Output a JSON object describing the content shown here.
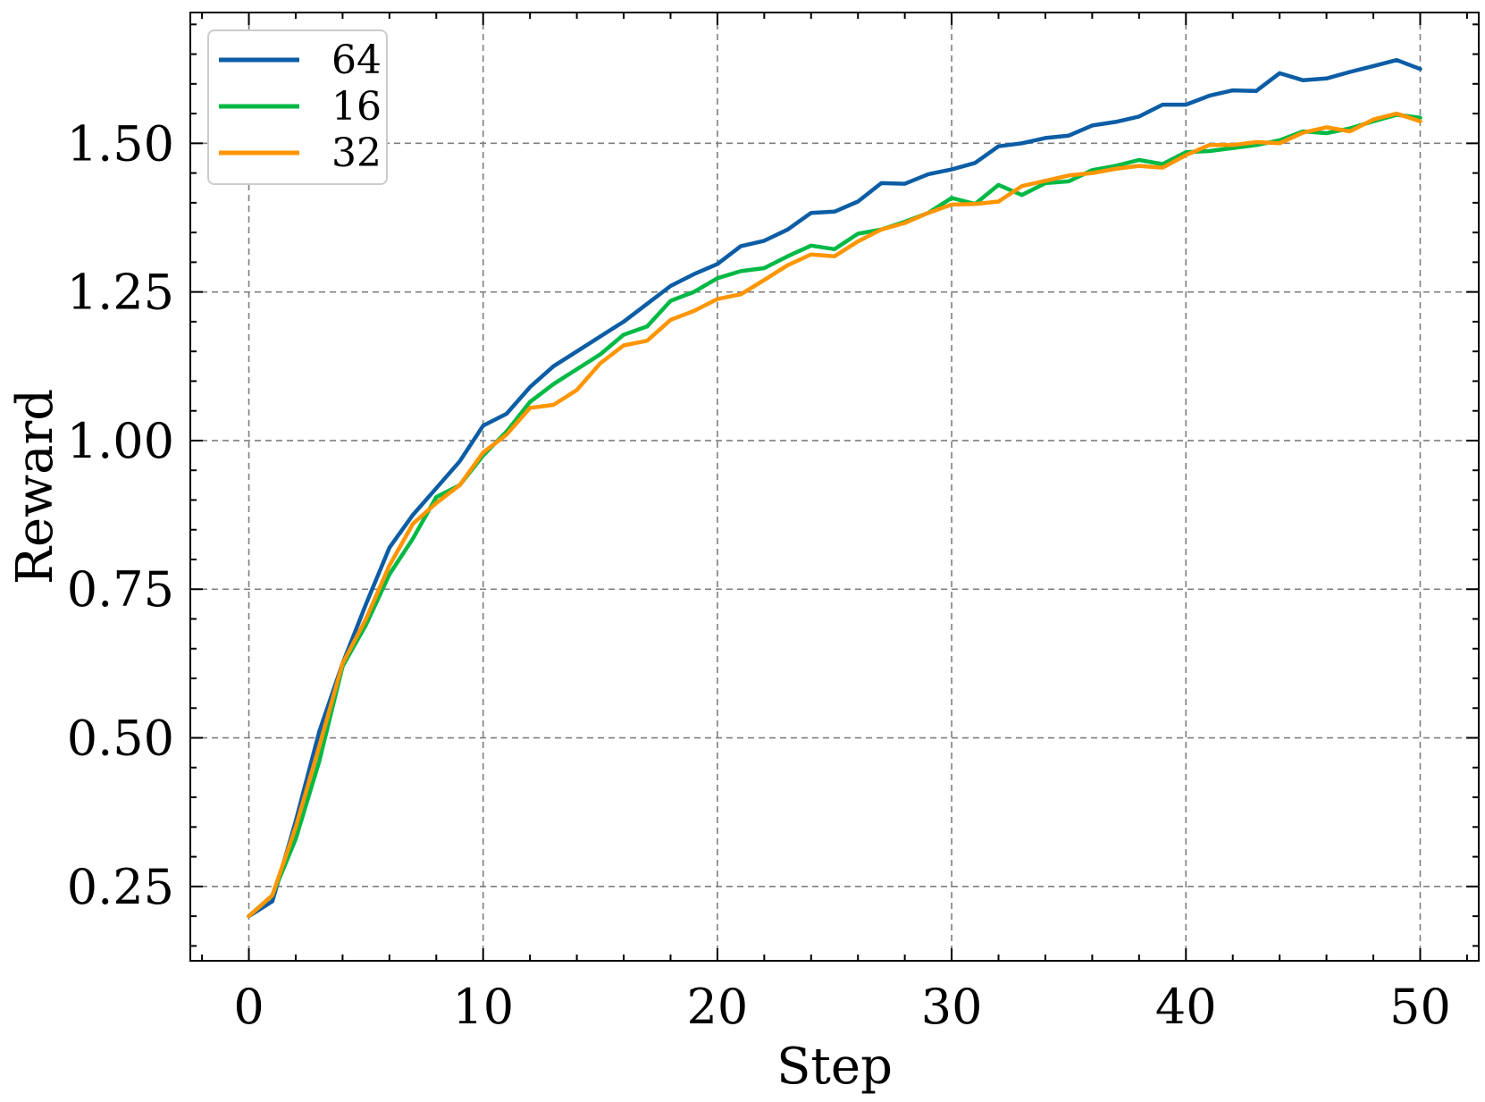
{
  "chart_data": {
    "type": "line",
    "title": "",
    "xlabel": "Step",
    "ylabel": "Reward",
    "xlim": [
      -2.5,
      52.5
    ],
    "ylim": [
      0.125,
      1.72
    ],
    "xticks": [
      0,
      10,
      20,
      30,
      40,
      50
    ],
    "xtick_labels": [
      "0",
      "10",
      "20",
      "30",
      "40",
      "50"
    ],
    "yticks": [
      0.25,
      0.5,
      0.75,
      1.0,
      1.25,
      1.5
    ],
    "ytick_labels": [
      "0.25",
      "0.50",
      "0.75",
      "1.00",
      "1.25",
      "1.50"
    ],
    "grid": true,
    "legend_placement": "top-left",
    "x": [
      0,
      1,
      2,
      3,
      4,
      5,
      6,
      7,
      8,
      9,
      10,
      11,
      12,
      13,
      14,
      15,
      16,
      17,
      18,
      19,
      20,
      21,
      22,
      23,
      24,
      25,
      26,
      27,
      28,
      29,
      30,
      31,
      32,
      33,
      34,
      35,
      36,
      37,
      38,
      39,
      40,
      41,
      42,
      43,
      44,
      45,
      46,
      47,
      48,
      49,
      50
    ],
    "series": [
      {
        "name": "64",
        "color": "#0C5DA5",
        "values": [
          0.2,
          0.225,
          0.36,
          0.51,
          0.625,
          0.725,
          0.82,
          0.875,
          0.92,
          0.965,
          1.025,
          1.045,
          1.09,
          1.125,
          1.15,
          1.175,
          1.2,
          1.23,
          1.26,
          1.28,
          1.297,
          1.327,
          1.336,
          1.355,
          1.383,
          1.385,
          1.402,
          1.433,
          1.432,
          1.448,
          1.456,
          1.467,
          1.495,
          1.5,
          1.509,
          1.513,
          1.53,
          1.536,
          1.545,
          1.565,
          1.565,
          1.58,
          1.589,
          1.588,
          1.618,
          1.606,
          1.609,
          1.62,
          1.63,
          1.64,
          1.625
        ]
      },
      {
        "name": "16",
        "color": "#00B945",
        "values": [
          0.2,
          0.235,
          0.33,
          0.46,
          0.62,
          0.69,
          0.775,
          0.835,
          0.905,
          0.925,
          0.975,
          1.015,
          1.065,
          1.095,
          1.12,
          1.145,
          1.178,
          1.192,
          1.235,
          1.25,
          1.273,
          1.285,
          1.29,
          1.31,
          1.328,
          1.322,
          1.348,
          1.355,
          1.368,
          1.383,
          1.408,
          1.398,
          1.43,
          1.413,
          1.433,
          1.436,
          1.455,
          1.462,
          1.472,
          1.465,
          1.485,
          1.487,
          1.492,
          1.497,
          1.505,
          1.52,
          1.517,
          1.525,
          1.537,
          1.548,
          1.543
        ]
      },
      {
        "name": "32",
        "color": "#FF9500",
        "values": [
          0.2,
          0.235,
          0.35,
          0.485,
          0.625,
          0.7,
          0.79,
          0.86,
          0.895,
          0.925,
          0.98,
          1.01,
          1.055,
          1.06,
          1.085,
          1.13,
          1.16,
          1.168,
          1.203,
          1.218,
          1.238,
          1.246,
          1.27,
          1.295,
          1.313,
          1.31,
          1.335,
          1.355,
          1.366,
          1.383,
          1.397,
          1.398,
          1.402,
          1.428,
          1.437,
          1.446,
          1.45,
          1.457,
          1.462,
          1.459,
          1.48,
          1.497,
          1.497,
          1.502,
          1.5,
          1.518,
          1.527,
          1.52,
          1.54,
          1.55,
          1.537
        ]
      }
    ]
  }
}
